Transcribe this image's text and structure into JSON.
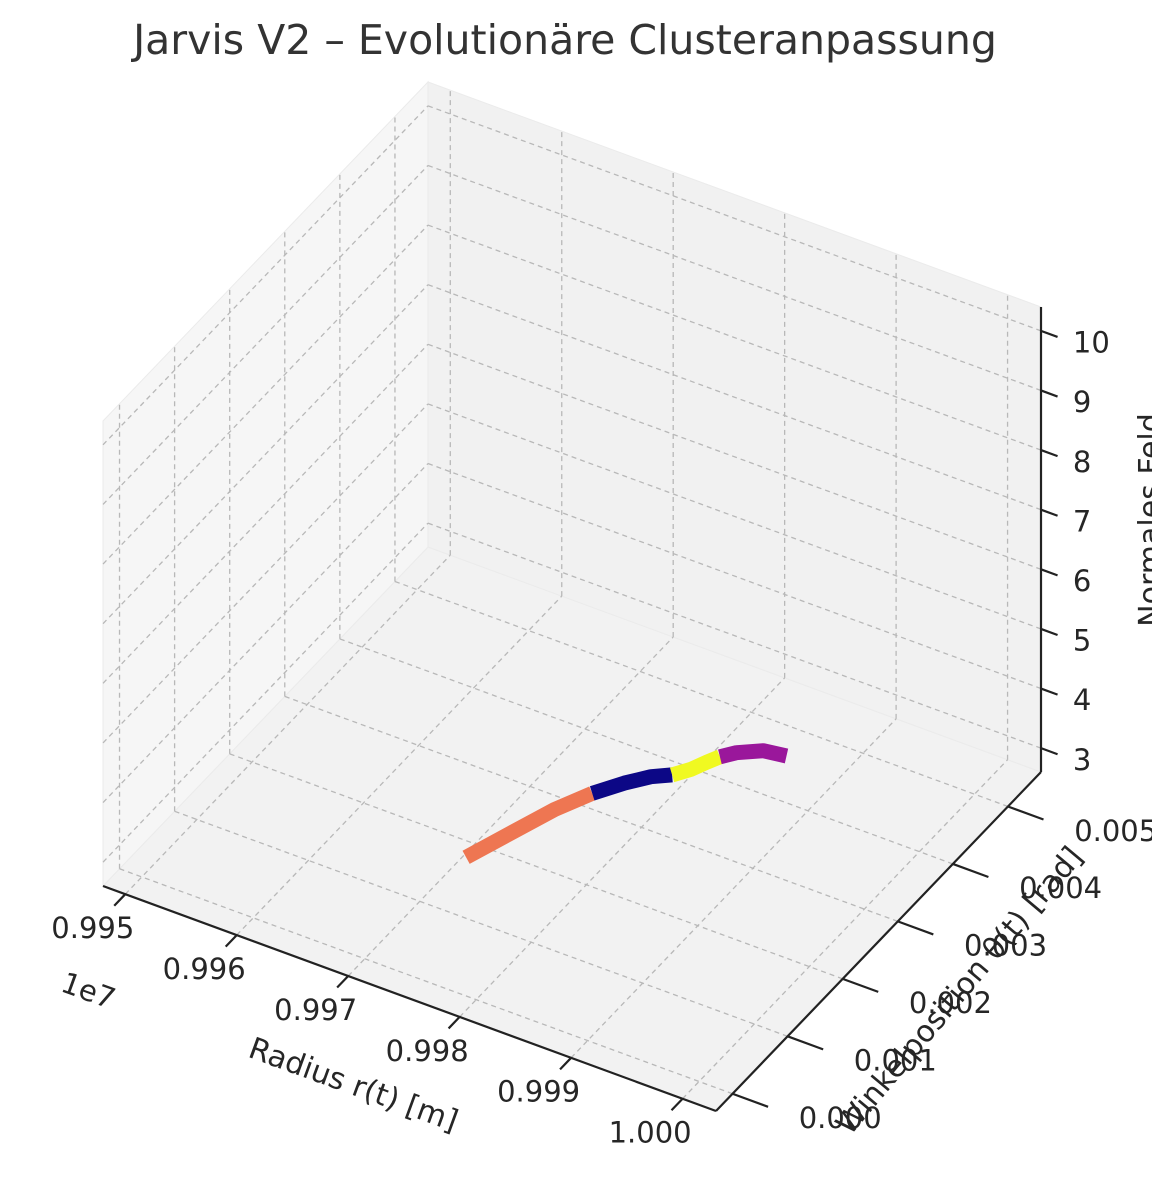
{
  "chart_data": {
    "type": "line3d",
    "title": "Jarvis V2 – Evolutionäre Clusteranpassung",
    "xlabel": "Radius r(t) [m]",
    "ylabel": "Winkelposition θ(t) [rad]",
    "zlabel": "Normales Feld",
    "x_offset_text": "1e7",
    "x_ticks": [
      "0.995",
      "0.996",
      "0.997",
      "0.998",
      "0.999",
      "1.000"
    ],
    "y_ticks": [
      "0.000",
      "0.001",
      "0.002",
      "0.003",
      "0.004",
      "0.005"
    ],
    "z_ticks": [
      "3",
      "4",
      "5",
      "6",
      "7",
      "8",
      "9",
      "10"
    ],
    "x_tick_values": [
      0.995,
      0.996,
      0.997,
      0.998,
      0.999,
      1.0
    ],
    "y_tick_values": [
      0,
      0.001,
      0.002,
      0.003,
      0.004,
      0.005
    ],
    "z_tick_values": [
      3,
      4,
      5,
      6,
      7,
      8,
      9,
      10
    ],
    "xlim": [
      0.9948,
      1.0003
    ],
    "ylim": [
      -0.0003,
      0.0056
    ],
    "zlim": [
      2.6,
      10.4
    ],
    "grid": true,
    "series": [
      {
        "color": "#ee7652",
        "points": [
          [
            0.9979,
            2e-05,
            4.9
          ],
          [
            0.99804,
            0.0006,
            4.87
          ],
          [
            0.99816,
            0.0011,
            4.84
          ],
          [
            0.9983,
            0.0015,
            4.82
          ]
        ]
      },
      {
        "color": "#0c0786",
        "points": [
          [
            0.9983,
            0.0015,
            4.82
          ],
          [
            0.99844,
            0.0018,
            4.8
          ],
          [
            0.99858,
            0.002,
            4.81
          ],
          [
            0.99872,
            0.0021,
            4.84
          ]
        ]
      },
      {
        "color": "#f0f921",
        "points": [
          [
            0.99872,
            0.0021,
            4.84
          ],
          [
            0.99884,
            0.0022,
            4.92
          ],
          [
            0.99894,
            0.00228,
            5.03
          ],
          [
            0.99902,
            0.00236,
            5.1
          ]
        ]
      },
      {
        "color": "#9a179b",
        "points": [
          [
            0.99902,
            0.00236,
            5.1
          ],
          [
            0.99912,
            0.00246,
            5.14
          ],
          [
            0.99928,
            0.00262,
            5.13
          ],
          [
            0.99945,
            0.0027,
            5.08
          ]
        ]
      }
    ]
  }
}
